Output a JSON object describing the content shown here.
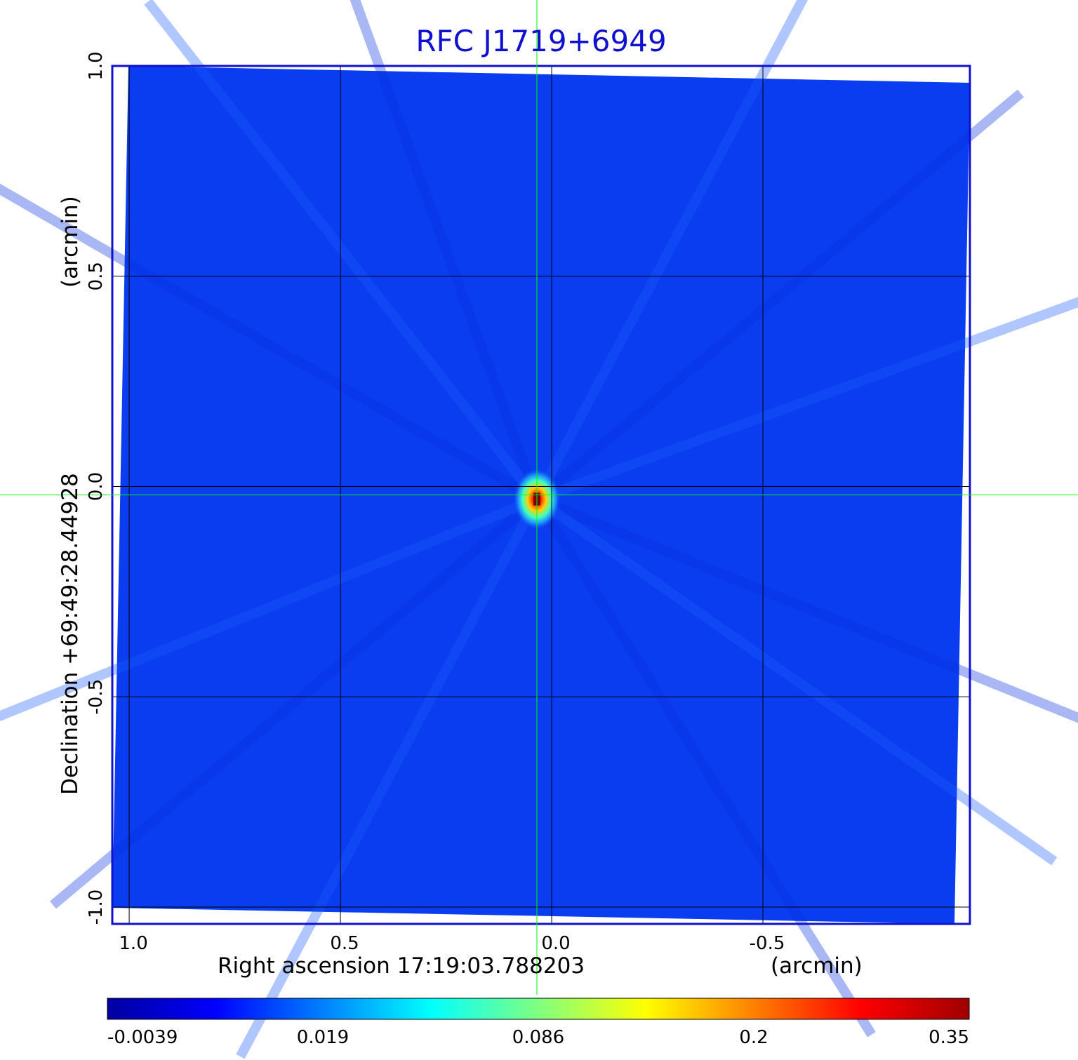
{
  "chart_data": {
    "type": "heatmap",
    "title": "RFC J1719+6949",
    "xlabel": "Right ascension  17:19:03.788203",
    "xunit": "(arcmin)",
    "ylabel": "Declination  +69:49:28.44928",
    "yunit": "(arcmin)",
    "xlim": [
      1.04,
      -0.99
    ],
    "ylim": [
      -1.04,
      1.0
    ],
    "x_ticks": [
      1.0,
      0.5,
      0.0,
      -0.5
    ],
    "x_tick_labels": [
      "1.0",
      "0.5",
      "0.0",
      "-0.5"
    ],
    "y_ticks": [
      1.0,
      0.5,
      0.0,
      -0.5,
      -1.0
    ],
    "y_tick_labels": [
      "1.0",
      "0.5",
      "0.0",
      "-0.5",
      "-1.0"
    ],
    "grid": true,
    "crosshair": {
      "x": 0.035,
      "y": -0.02
    },
    "source_peak": {
      "x": 0.035,
      "y": -0.03,
      "value": 0.35
    },
    "colorbar": {
      "ticks": [
        -0.0039,
        0.019,
        0.086,
        0.2,
        0.35
      ],
      "tick_labels": [
        "-0.0039",
        "0.019",
        "0.086",
        "0.2",
        "0.35"
      ],
      "colors": [
        "#0000a0",
        "#0000ff",
        "#0080ff",
        "#00ffff",
        "#80ff80",
        "#ffff00",
        "#ff8000",
        "#ff0000",
        "#a00000"
      ]
    },
    "background_color": "#0a3cf0",
    "frame_color": "#1010d0",
    "crosshair_color": "#00ff00"
  }
}
